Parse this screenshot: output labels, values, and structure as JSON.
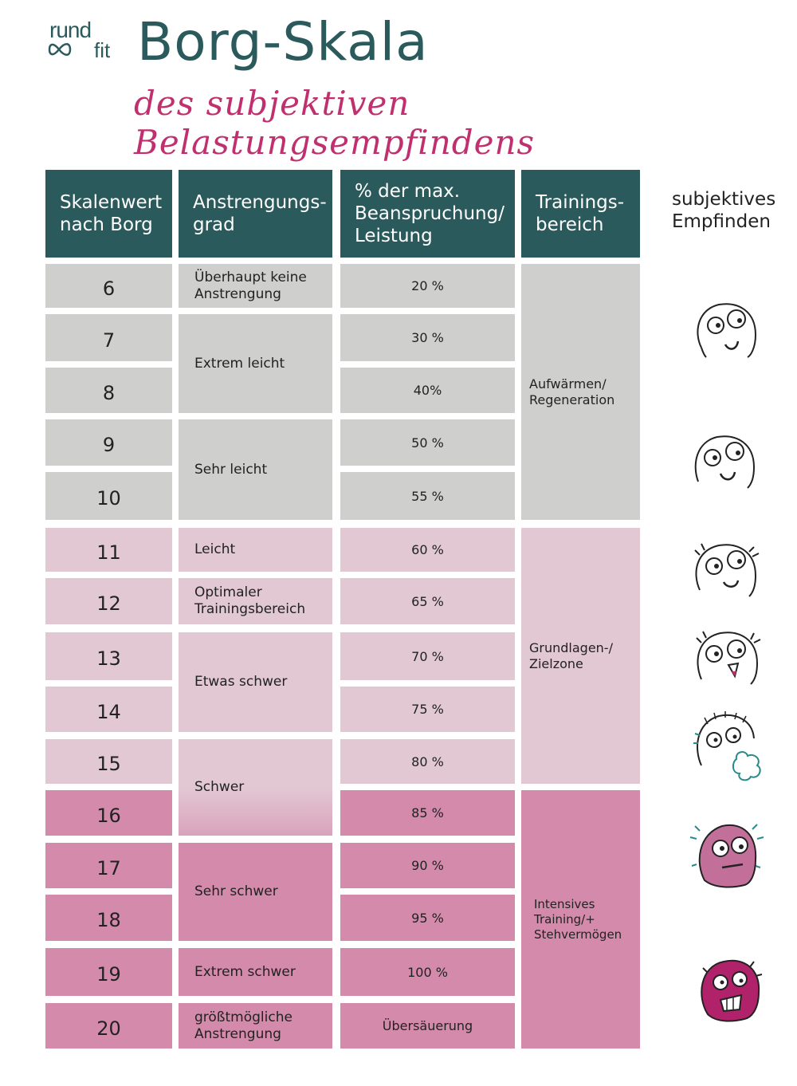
{
  "logo": {
    "top": "rund",
    "bottom": "fit",
    "infinity_symbol": "infinity-icon"
  },
  "title": "Borg-Skala",
  "subtitle": "des subjektiven Belastungsempfindens",
  "headers": {
    "col1": [
      "Skalenwert",
      "nach Borg"
    ],
    "col2": [
      "Anstrengungs-",
      "grad"
    ],
    "col3": [
      "% der max.",
      "Beanspruchung/",
      "Leistung"
    ],
    "col4": [
      "Trainings-",
      "bereich"
    ],
    "col5": [
      "subjektives",
      "Empfinden"
    ]
  },
  "rows": [
    {
      "value": "6",
      "percent": "20 %"
    },
    {
      "value": "7",
      "percent": "30 %"
    },
    {
      "value": "8",
      "percent": "40%"
    },
    {
      "value": "9",
      "percent": "50 %"
    },
    {
      "value": "10",
      "percent": "55 %"
    },
    {
      "value": "11",
      "percent": "60 %"
    },
    {
      "value": "12",
      "percent": "65 %"
    },
    {
      "value": "13",
      "percent": "70 %"
    },
    {
      "value": "14",
      "percent": "75 %"
    },
    {
      "value": "15",
      "percent": "80 %"
    },
    {
      "value": "16",
      "percent": "85 %"
    },
    {
      "value": "17",
      "percent": "90 %"
    },
    {
      "value": "18",
      "percent": "95 %"
    },
    {
      "value": "19",
      "percent": "100 %"
    },
    {
      "value": "20",
      "percent": "Übersäuerung"
    }
  ],
  "effort": [
    [
      "Überhaupt keine",
      "Anstrengung"
    ],
    [
      "Extrem leicht"
    ],
    [
      "Sehr leicht"
    ],
    [
      "Leicht"
    ],
    [
      "Optimaler",
      "Trainingsbereich"
    ],
    [
      "Etwas schwer"
    ],
    [
      "Schwer"
    ],
    [
      "Sehr schwer"
    ],
    [
      "Extrem schwer"
    ],
    [
      "größtmögliche",
      "Anstrengung"
    ]
  ],
  "zones": [
    [
      "Aufwärmen/",
      "Regeneration"
    ],
    [
      "Grundlagen-/",
      "Zielzone"
    ],
    [
      "Intensives",
      "Training/+",
      "Stehvermögen"
    ]
  ],
  "faces": [
    "smiling-face-icon",
    "content-face-icon",
    "sweating-smile-face-icon",
    "sweating-grin-face-icon",
    "panting-face-icon",
    "exhausted-face-icon",
    "screaming-face-icon"
  ],
  "colors": {
    "header": "#2b5a5c",
    "title": "#2a5a5c",
    "subtitle": "#c0306e",
    "gray": "#cfd0ce",
    "light_pink": "#e2c8d2",
    "pink": "#d48bab"
  }
}
